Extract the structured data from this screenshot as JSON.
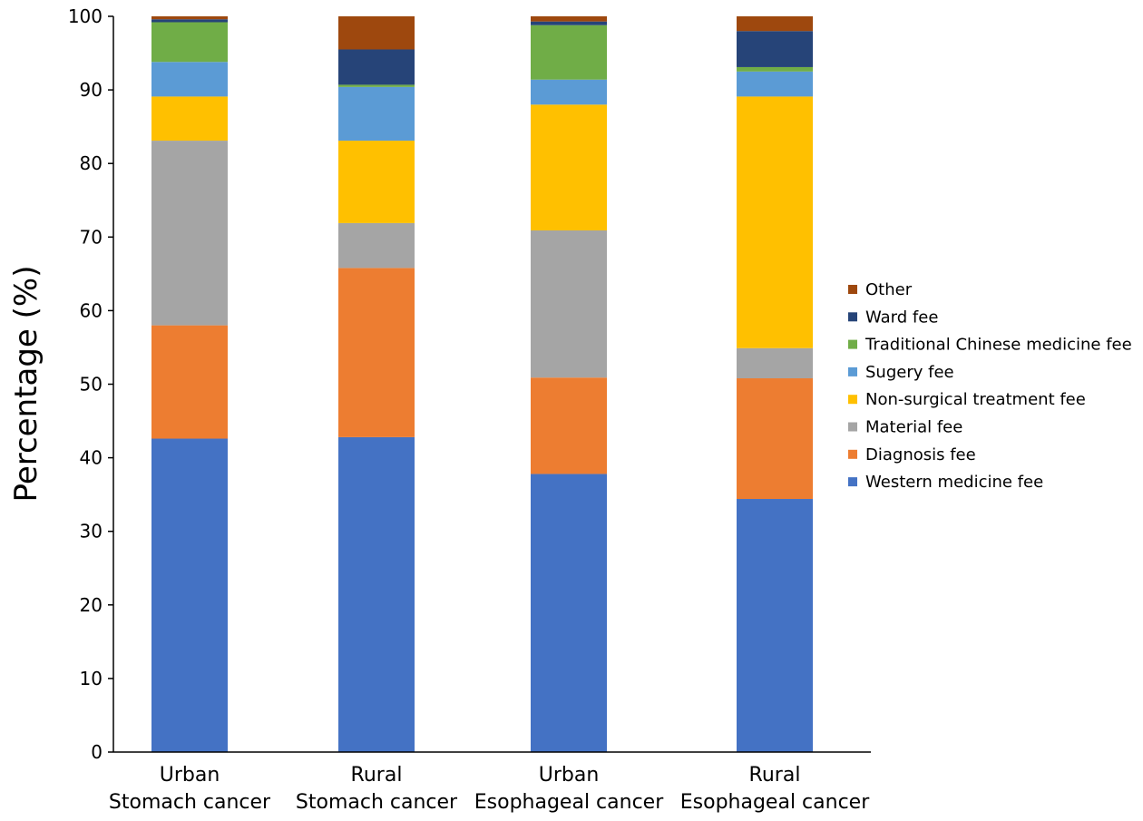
{
  "chart_data": {
    "type": "bar",
    "stacked": true,
    "title": "",
    "xlabel": "",
    "ylabel": "Percentage (%)",
    "ylim": [
      0,
      100
    ],
    "yticks": [
      0,
      10,
      20,
      30,
      40,
      50,
      60,
      70,
      80,
      90,
      100
    ],
    "grid": false,
    "legend_position": "right",
    "categories": [
      [
        "Urban",
        "Stomach cancer"
      ],
      [
        "Rural",
        "Stomach cancer"
      ],
      [
        "Urban",
        "Esophageal cancer"
      ],
      [
        "Rural",
        "Esophageal cancer"
      ]
    ],
    "series": [
      {
        "name": "Western medicine fee",
        "color": "#4472C4",
        "values": [
          42.6,
          42.8,
          37.8,
          34.4
        ]
      },
      {
        "name": "Diagnosis fee",
        "color": "#ED7D31",
        "values": [
          15.4,
          23.0,
          13.1,
          16.4
        ]
      },
      {
        "name": "Material fee",
        "color": "#A5A5A5",
        "values": [
          25.1,
          6.1,
          20.0,
          4.1
        ]
      },
      {
        "name": "Non-surgical treatment fee",
        "color": "#FFC000",
        "values": [
          6.0,
          11.2,
          17.1,
          34.2
        ]
      },
      {
        "name": "Sugery fee",
        "color": "#5B9BD5",
        "values": [
          4.7,
          7.3,
          3.4,
          3.4
        ]
      },
      {
        "name": "Traditional Chinese medicine fee",
        "color": "#70AD47",
        "values": [
          5.4,
          0.3,
          7.4,
          0.6
        ]
      },
      {
        "name": "Ward fee",
        "color": "#264478",
        "values": [
          0.4,
          4.8,
          0.5,
          4.9
        ]
      },
      {
        "name": "Other",
        "color": "#9E480E",
        "values": [
          0.4,
          4.5,
          0.7,
          2.0
        ]
      }
    ]
  }
}
